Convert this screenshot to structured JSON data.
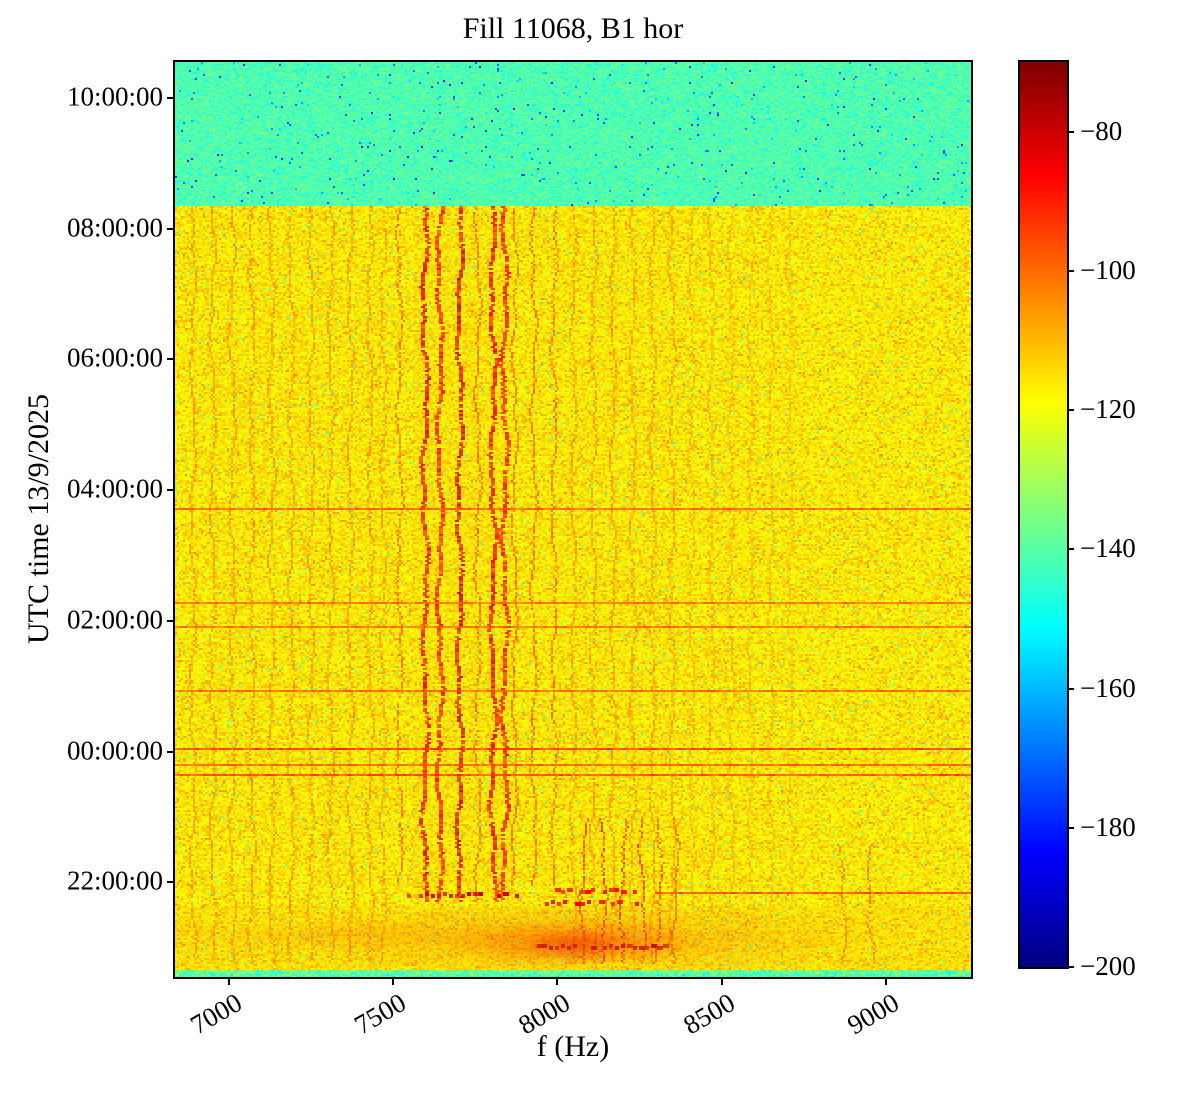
{
  "figure": {
    "kind": "spectrogram figure"
  },
  "chart_data": {
    "type": "heatmap",
    "subtype": "spectrogram",
    "title": "Fill 11068, B1 hor",
    "xlabel": "f (Hz)",
    "ylabel": "UTC time 13/9/2025",
    "x_range_hz": [
      6835,
      9260
    ],
    "x_ticks_hz": [
      7000,
      7500,
      8000,
      8500,
      9000
    ],
    "y_hours_range": [
      20.55,
      34.55
    ],
    "y_ticks": [
      {
        "hours": 34,
        "label": "10:00:00"
      },
      {
        "hours": 32,
        "label": "08:00:00"
      },
      {
        "hours": 30,
        "label": "06:00:00"
      },
      {
        "hours": 28,
        "label": "04:00:00"
      },
      {
        "hours": 26,
        "label": "02:00:00"
      },
      {
        "hours": 24,
        "label": "00:00:00"
      },
      {
        "hours": 22,
        "label": "22:00:00"
      }
    ],
    "colorbar": {
      "min": -200,
      "max": -70,
      "ticks": [
        -80,
        -100,
        -120,
        -140,
        -160,
        -180,
        -200
      ],
      "colormap": "jet"
    },
    "regions": [
      {
        "name": "quiet-noise-floor-top-band",
        "t_from": 32.35,
        "t_to": 34.55,
        "db": -141,
        "sigma": 2.6
      },
      {
        "name": "beam-on-background",
        "t_from": 20.55,
        "t_to": 32.35,
        "db": -116.2,
        "sigma": 3.2
      }
    ],
    "washes": [
      [
        7560,
        7860,
        21.8,
        32.35,
        -110,
        0.1
      ],
      [
        6890,
        7500,
        21.9,
        32.35,
        -112,
        0.05
      ],
      [
        7900,
        8360,
        22.0,
        32.35,
        -112,
        0.05
      ]
    ],
    "vertical_lines": [
      {
        "f": 7597,
        "db": -84,
        "w": 2,
        "tb": 21.7
      },
      {
        "f": 7642,
        "db": -88,
        "w": 2,
        "tb": 21.7
      },
      {
        "f": 7703,
        "db": -81,
        "w": 2,
        "tb": 21.7
      },
      {
        "f": 7758,
        "db": -95,
        "w": 1,
        "tb": 21.7
      },
      {
        "f": 7804,
        "db": -84,
        "w": 2,
        "tb": 21.7
      },
      {
        "f": 7840,
        "db": -87,
        "w": 2,
        "tb": 21.7
      },
      {
        "f": 7520,
        "db": -95,
        "w": 1,
        "tb": 21.95
      },
      {
        "f": 7870,
        "db": -95,
        "w": 1,
        "tb": 21.95
      },
      {
        "f": 7928,
        "db": -95,
        "w": 1,
        "tb": 21.95
      },
      {
        "f": 7990,
        "db": -96,
        "w": 1,
        "tb": 21.95
      },
      {
        "f": 6890,
        "db": -102,
        "w": 1,
        "tb": 20.8
      },
      {
        "f": 6950,
        "db": -102,
        "w": 1,
        "tb": 20.8
      },
      {
        "f": 7010,
        "db": -102,
        "w": 1,
        "tb": 20.8
      },
      {
        "f": 7070,
        "db": -102,
        "w": 1,
        "tb": 20.8
      },
      {
        "f": 7130,
        "db": -102,
        "w": 1,
        "tb": 20.8
      },
      {
        "f": 7190,
        "db": -102,
        "w": 1,
        "tb": 20.8
      },
      {
        "f": 7250,
        "db": -102,
        "w": 1,
        "tb": 20.8
      },
      {
        "f": 7310,
        "db": -102,
        "w": 1,
        "tb": 20.8
      },
      {
        "f": 7370,
        "db": -102,
        "w": 1,
        "tb": 20.8
      },
      {
        "f": 7430,
        "db": -102,
        "w": 1,
        "tb": 20.8
      },
      {
        "f": 7470,
        "db": -103,
        "w": 1,
        "tb": 20.8
      },
      {
        "f": 8050,
        "db": -102,
        "w": 1,
        "tb": 20.8
      },
      {
        "f": 8110,
        "db": -102,
        "w": 1,
        "tb": 20.8
      },
      {
        "f": 8170,
        "db": -102,
        "w": 1,
        "tb": 20.8
      },
      {
        "f": 8230,
        "db": -103,
        "w": 1,
        "tb": 20.8
      },
      {
        "f": 8290,
        "db": -103,
        "w": 1,
        "tb": 20.8
      },
      {
        "f": 8350,
        "db": -103,
        "w": 1,
        "tb": 20.8
      },
      {
        "f": 8410,
        "db": -106,
        "w": 1,
        "tb": 21.6
      },
      {
        "f": 8470,
        "db": -106,
        "w": 1,
        "tb": 21.6
      },
      {
        "f": 8530,
        "db": -107,
        "w": 1,
        "tb": 21.6
      },
      {
        "f": 8590,
        "db": -107,
        "w": 1,
        "tb": 21.6
      },
      {
        "f": 8650,
        "db": -107,
        "w": 1,
        "tb": 21.6
      },
      {
        "f": 8710,
        "db": -108,
        "w": 1,
        "tb": 21.6
      },
      {
        "f": 8080,
        "db": -89,
        "w": 1,
        "tt": 23.0,
        "tb": 20.75
      },
      {
        "f": 8140,
        "db": -85,
        "w": 1,
        "tt": 23.0,
        "tb": 20.75
      },
      {
        "f": 8200,
        "db": -87,
        "w": 1,
        "tt": 23.0,
        "tb": 20.75
      },
      {
        "f": 8260,
        "db": -89,
        "w": 1,
        "tt": 23.0,
        "tb": 20.75
      },
      {
        "f": 8310,
        "db": -91,
        "w": 1,
        "tt": 23.0,
        "tb": 20.75
      },
      {
        "f": 8360,
        "db": -94,
        "w": 1,
        "tt": 23.0,
        "tb": 20.75
      },
      {
        "f": 8870,
        "db": -99,
        "w": 1,
        "tt": 22.6,
        "tb": 20.75
      },
      {
        "f": 8955,
        "db": -98,
        "w": 1,
        "tt": 22.6,
        "tb": 20.75
      }
    ],
    "horizontal_lines": [
      {
        "t": 27.73,
        "db": -96,
        "f0": 6835,
        "f1": 9260
      },
      {
        "t": 26.29,
        "db": -98,
        "f0": 6835,
        "f1": 9260
      },
      {
        "t": 25.92,
        "db": -98,
        "f0": 6835,
        "f1": 9260
      },
      {
        "t": 24.95,
        "db": -97,
        "f0": 6835,
        "f1": 9260
      },
      {
        "t": 24.07,
        "db": -91,
        "f0": 6835,
        "f1": 9260
      },
      {
        "t": 23.83,
        "db": -96,
        "f0": 6835,
        "f1": 9260
      },
      {
        "t": 23.67,
        "db": -93,
        "f0": 6835,
        "f1": 9260
      },
      {
        "t": 21.85,
        "db": -94,
        "f0": 8300,
        "f1": 9260
      }
    ],
    "dash_rows": [
      {
        "t": 21.82,
        "f0": 7540,
        "f1": 7890,
        "db": -79
      },
      {
        "t": 21.9,
        "f0": 7990,
        "f1": 8240,
        "db": -86
      },
      {
        "t": 21.7,
        "f0": 7960,
        "f1": 8240,
        "db": -84
      },
      {
        "t": 21.05,
        "f0": 7940,
        "f1": 8330,
        "db": -80
      }
    ],
    "blobs": [
      {
        "f": 8050,
        "t": 21.15,
        "fr": 950,
        "tr": 0.55,
        "db": -92,
        "a": 0.4
      },
      {
        "f": 8060,
        "t": 21.1,
        "fr": 420,
        "tr": 0.38,
        "db": -86,
        "a": 0.6
      },
      {
        "f": 8060,
        "t": 21.05,
        "fr": 180,
        "tr": 0.25,
        "db": -80,
        "a": 0.65
      },
      {
        "f": 7350,
        "t": 21.2,
        "fr": 600,
        "tr": 0.25,
        "db": -101,
        "a": 0.35
      }
    ],
    "bottom_tint": {
      "t_from": 20.55,
      "t_to": 21.65,
      "db": -106,
      "a": 0.13
    },
    "bottom_edge": {
      "t_from": 20.55,
      "t_to": 20.67,
      "db": -137,
      "sigma": 5
    }
  }
}
